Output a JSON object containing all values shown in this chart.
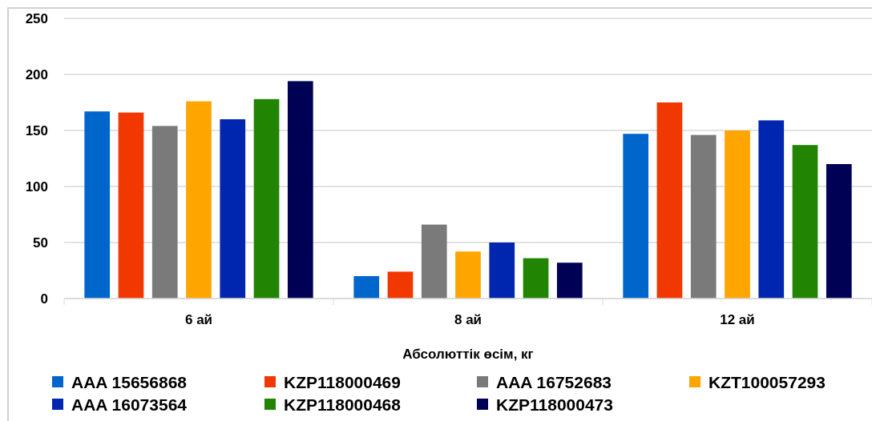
{
  "chart_data": {
    "type": "bar",
    "xlabel": "Абсолюттік өсім, кг",
    "categories": [
      "6 ай",
      "8 ай",
      "12 ай"
    ],
    "series": [
      {
        "name": "AAA 15656868",
        "color": "#0066cc",
        "values": [
          167,
          20,
          147
        ]
      },
      {
        "name": "KZP118000469",
        "color": "#f03800",
        "values": [
          166,
          24,
          175
        ]
      },
      {
        "name": "AAA 16752683",
        "color": "#7a7a7a",
        "values": [
          154,
          66,
          146
        ]
      },
      {
        "name": "KZT100057293",
        "color": "#ffa500",
        "values": [
          176,
          42,
          150
        ]
      },
      {
        "name": "AAA 16073564",
        "color": "#0026b0",
        "values": [
          160,
          50,
          159
        ]
      },
      {
        "name": "KZP118000468",
        "color": "#228403",
        "values": [
          178,
          36,
          137
        ]
      },
      {
        "name": "KZP118000473",
        "color": "#000055",
        "values": [
          194,
          32,
          120
        ]
      }
    ],
    "ylim": [
      0,
      250
    ],
    "yticks": [
      0,
      50,
      100,
      150,
      200,
      250
    ],
    "grid": "y",
    "legend": "bottom"
  }
}
